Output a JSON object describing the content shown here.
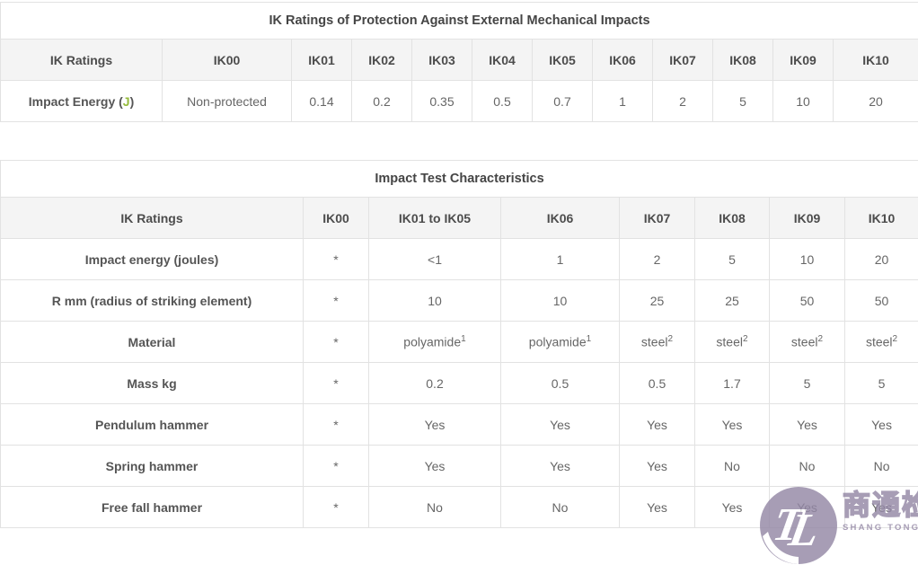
{
  "table1": {
    "title": "IK Ratings of Protection Against External Mechanical Impacts",
    "header": [
      "IK Ratings",
      "IK00",
      "IK01",
      "IK02",
      "IK03",
      "IK04",
      "IK05",
      "IK06",
      "IK07",
      "IK08",
      "IK09",
      "IK10"
    ],
    "row": {
      "label": {
        "prefix": "Impact Energy (",
        "unit": "J",
        "suffix": ")"
      },
      "cells": [
        "Non-protected",
        "0.14",
        "0.2",
        "0.35",
        "0.5",
        "0.7",
        "1",
        "2",
        "5",
        "10",
        "20"
      ]
    }
  },
  "table2": {
    "title": "Impact Test Characteristics",
    "header": [
      "IK Ratings",
      "IK00",
      "IK01 to IK05",
      "IK06",
      "IK07",
      "IK08",
      "IK09",
      "IK10"
    ],
    "rows": [
      {
        "label": "Impact energy (joules)",
        "cells": [
          "*",
          "<1",
          "1",
          "2",
          "5",
          "10",
          "20"
        ]
      },
      {
        "label": "R mm (radius of striking element)",
        "cells": [
          "*",
          "10",
          "10",
          "25",
          "25",
          "50",
          "50"
        ]
      },
      {
        "label": "Material",
        "cells": [
          "*",
          {
            "t": "polyamide",
            "sup": "1"
          },
          {
            "t": "polyamide",
            "sup": "1"
          },
          {
            "t": "steel",
            "sup": "2"
          },
          {
            "t": "steel",
            "sup": "2"
          },
          {
            "t": "steel",
            "sup": "2"
          },
          {
            "t": "steel",
            "sup": "2"
          }
        ]
      },
      {
        "label": "Mass kg",
        "cells": [
          "*",
          "0.2",
          "0.5",
          "0.5",
          "1.7",
          "5",
          "5"
        ]
      },
      {
        "label": "Pendulum hammer",
        "cells": [
          "*",
          "Yes",
          "Yes",
          "Yes",
          "Yes",
          "Yes",
          "Yes"
        ]
      },
      {
        "label": "Spring hammer",
        "cells": [
          "*",
          "Yes",
          "Yes",
          "Yes",
          "No",
          "No",
          "No"
        ]
      },
      {
        "label": "Free fall hammer",
        "cells": [
          "*",
          "No",
          "No",
          "Yes",
          "Yes",
          "Yes",
          "Yes"
        ]
      }
    ]
  },
  "watermark": {
    "monogram": "TL",
    "chinese": "商通检测",
    "english": "SHANG TONG TESTING",
    "color": "#9488a6"
  },
  "colors": {
    "border": "#e2e2e2",
    "header_bg": "#f4f4f4",
    "header_text": "#4c4c4c",
    "body_text": "#666666",
    "title_text": "#454545",
    "accent_green": "#96bb3c",
    "watermark_purple": "#9488a6"
  }
}
